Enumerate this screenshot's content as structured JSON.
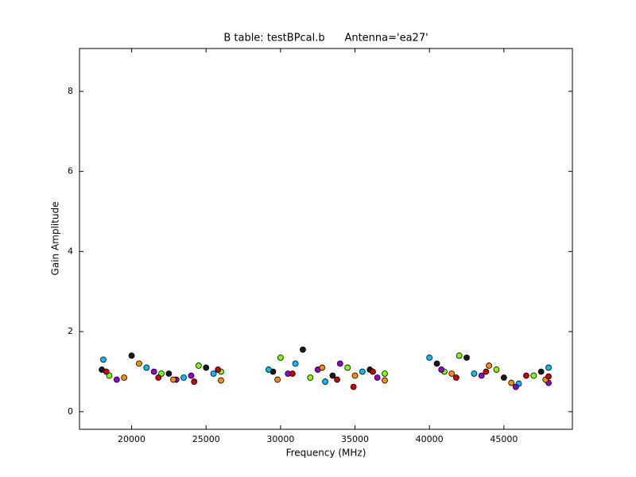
{
  "chart_data": {
    "type": "scatter",
    "title": "B table: testBPcal.b      Antenna='ea27'",
    "x_label": "Frequency (MHz)",
    "y_label": "Gain Amplitude",
    "xlim": [
      16500,
      49600
    ],
    "ylim": [
      -0.44,
      9.07
    ],
    "xticks": [
      20000,
      25000,
      30000,
      35000,
      40000,
      45000
    ],
    "yticks": [
      0,
      2,
      4,
      6,
      8
    ],
    "grid": false,
    "series": [
      {
        "color": "#1a1a1a",
        "x": [
          18000,
          20000,
          22500,
          25000,
          29500,
          31500,
          33500,
          36000,
          40500,
          42500,
          45000,
          47500
        ],
        "y": [
          1.05,
          1.4,
          0.95,
          1.1,
          1.0,
          1.55,
          0.9,
          1.05,
          1.2,
          1.35,
          0.85,
          1.0
        ]
      },
      {
        "color": "#7fff00",
        "x": [
          18500,
          22000,
          24500,
          26000,
          30000,
          32000,
          34500,
          37000,
          41000,
          42000,
          44500,
          47000
        ],
        "y": [
          0.9,
          0.95,
          1.15,
          1.0,
          1.35,
          0.85,
          1.1,
          0.95,
          1.0,
          1.4,
          1.05,
          0.9
        ]
      },
      {
        "color": "#00bfff",
        "x": [
          18100,
          21000,
          23500,
          25500,
          29200,
          31000,
          33000,
          35500,
          40000,
          43000,
          46000,
          48000
        ],
        "y": [
          1.3,
          1.1,
          0.85,
          0.95,
          1.05,
          1.2,
          0.75,
          1.0,
          1.35,
          0.95,
          0.7,
          1.1
        ]
      },
      {
        "color": "#9400d3",
        "x": [
          19000,
          21500,
          23000,
          24000,
          30500,
          32500,
          34000,
          36500,
          40800,
          43500,
          45800,
          48000
        ],
        "y": [
          0.8,
          1.0,
          0.8,
          0.9,
          0.95,
          1.05,
          1.2,
          0.85,
          1.05,
          0.9,
          0.62,
          0.72
        ]
      },
      {
        "color": "#ff8c00",
        "x": [
          19500,
          20500,
          22800,
          26000,
          29800,
          32800,
          35000,
          37000,
          41500,
          44000,
          45500,
          47800
        ],
        "y": [
          0.85,
          1.2,
          0.8,
          0.78,
          0.8,
          1.1,
          0.9,
          0.78,
          0.95,
          1.15,
          0.72,
          0.8
        ]
      },
      {
        "color": "#cc0000",
        "x": [
          18300,
          21800,
          24200,
          25800,
          30800,
          33800,
          34900,
          36200,
          41800,
          43800,
          46500,
          48000
        ],
        "y": [
          1.0,
          0.85,
          0.75,
          1.05,
          0.95,
          0.8,
          0.62,
          1.0,
          0.85,
          1.0,
          0.9,
          0.88
        ]
      }
    ]
  }
}
